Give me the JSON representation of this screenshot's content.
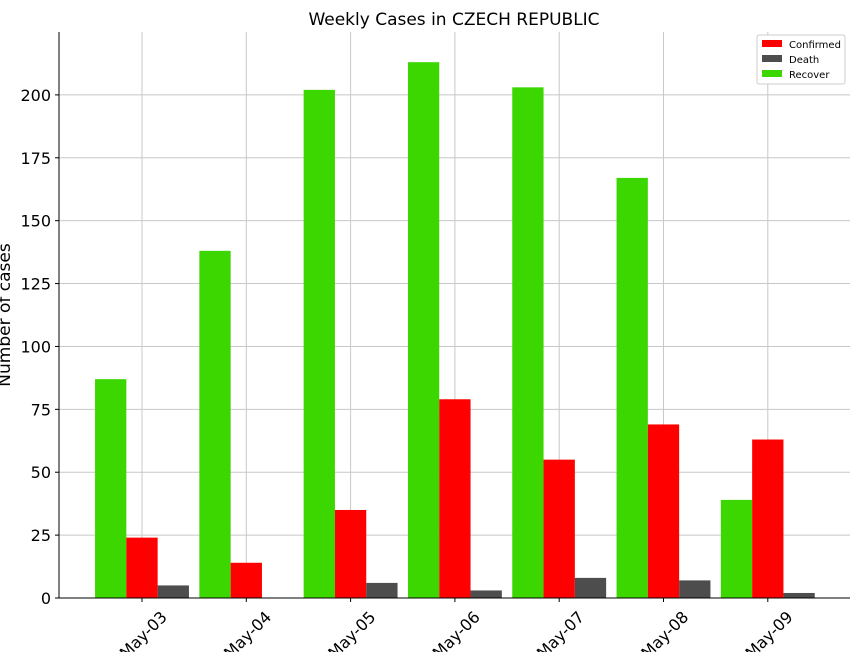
{
  "chart_data": {
    "type": "bar",
    "title": "Weekly Cases in CZECH REPUBLIC",
    "xlabel": "",
    "ylabel": "Number of cases",
    "categories": [
      "May-03",
      "May-04",
      "May-05",
      "May-06",
      "May-07",
      "May-08",
      "May-09"
    ],
    "series": [
      {
        "name": "Recover",
        "color": "#3cd700",
        "values": [
          87,
          138,
          202,
          213,
          203,
          167,
          39
        ]
      },
      {
        "name": "Confirmed",
        "color": "#ff0000",
        "values": [
          24,
          14,
          35,
          79,
          55,
          69,
          63
        ]
      },
      {
        "name": "Death",
        "color": "#4d4d4d",
        "values": [
          5,
          0,
          6,
          3,
          8,
          7,
          2
        ]
      }
    ],
    "legend_order": [
      "Confirmed",
      "Death",
      "Recover"
    ],
    "ylim": [
      0,
      225
    ],
    "yticks": [
      0,
      25,
      50,
      75,
      100,
      125,
      150,
      175,
      200
    ],
    "grid": true,
    "legend_position": "top-right",
    "xtick_rotation": 45
  }
}
